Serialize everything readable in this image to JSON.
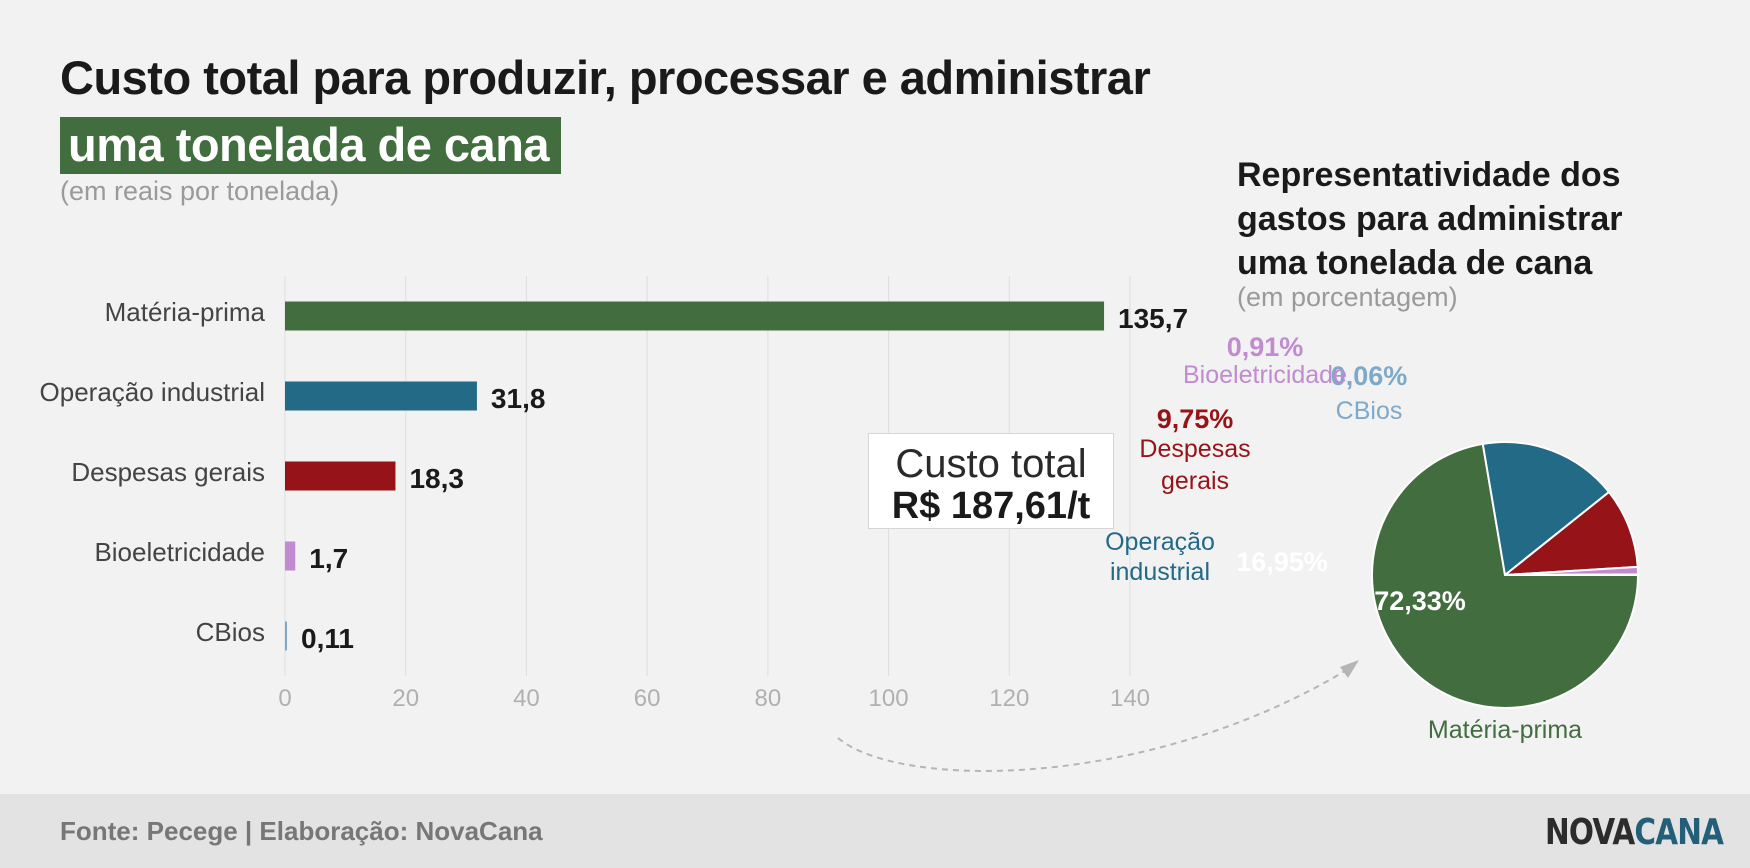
{
  "header": {
    "title_line1": "Custo total para produzir, processar e administrar",
    "title_line2": "uma tonelada de cana",
    "subtitle": "(em reais por tonelada)"
  },
  "total_box": {
    "label": "Custo total",
    "value": "R$ 187,61/t"
  },
  "pie_header": {
    "title": "Representatividade dos gastos para administrar uma tonelada de cana",
    "subtitle": "(em porcentagem)"
  },
  "footer": {
    "source": "Fonte: Pecege | Elaboração: NovaCana",
    "logo_part1": "NOVA",
    "logo_part2": "CANA"
  },
  "colors": {
    "materia_prima": "#426d3f",
    "operacao_industrial": "#236a86",
    "despesas_gerais": "#961418",
    "bioeletricidade": "#c08bd0",
    "cbios": "#7ea9c9",
    "brand_green": "#426d3f"
  },
  "chart_data": [
    {
      "type": "bar",
      "orientation": "horizontal",
      "title": "Custo total para produzir, processar e administrar uma tonelada de cana",
      "subtitle": "(em reais por tonelada)",
      "categories": [
        "Matéria-prima",
        "Operação industrial",
        "Despesas gerais",
        "Bioeletricidade",
        "CBios"
      ],
      "values": [
        135.7,
        31.8,
        18.3,
        1.7,
        0.11
      ],
      "value_labels": [
        "135,7",
        "31,8",
        "18,3",
        "1,7",
        "0,11"
      ],
      "colors": [
        "#426d3f",
        "#236a86",
        "#961418",
        "#c08bd0",
        "#7ea9c9"
      ],
      "xlim": [
        0,
        140
      ],
      "xticks": [
        0,
        20,
        40,
        60,
        80,
        100,
        120,
        140
      ],
      "grid": "vertical",
      "xlabel": "",
      "ylabel": ""
    },
    {
      "type": "pie",
      "title": "Representatividade dos gastos para administrar uma tonelada de cana",
      "subtitle": "(em porcentagem)",
      "slices": [
        {
          "label": "Matéria-prima",
          "value": 72.33,
          "value_label": "72,33%",
          "color": "#426d3f"
        },
        {
          "label": "Operação industrial",
          "value": 16.95,
          "value_label": "16,95%",
          "color": "#236a86"
        },
        {
          "label": "Despesas gerais",
          "value": 9.75,
          "value_label": "9,75%",
          "color": "#961418"
        },
        {
          "label": "Bioeletricidade",
          "value": 0.91,
          "value_label": "0,91%",
          "color": "#c08bd0"
        },
        {
          "label": "CBios",
          "value": 0.06,
          "value_label": "0,06%",
          "color": "#7ea9c9"
        }
      ],
      "legend": "labels around the pie"
    }
  ]
}
